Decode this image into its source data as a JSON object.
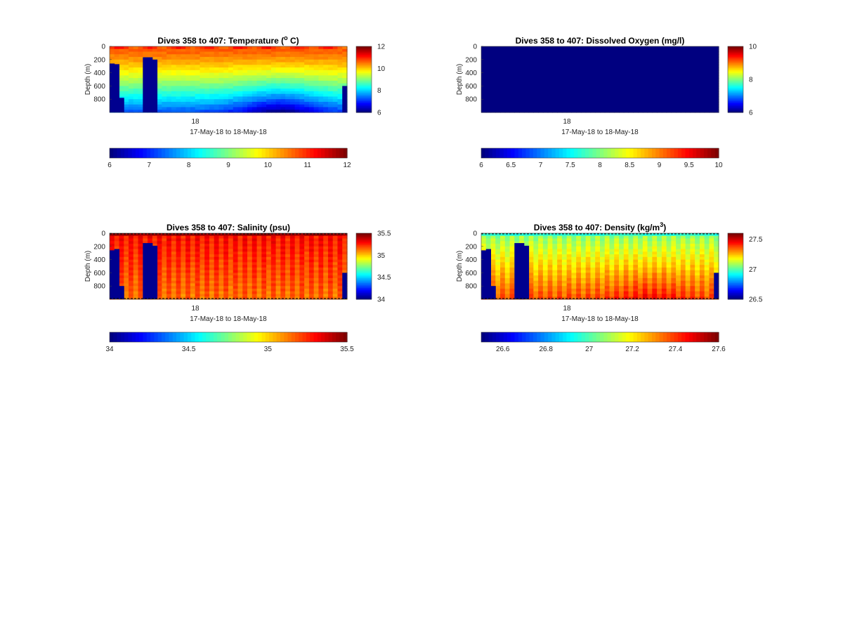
{
  "chart_data": [
    {
      "type": "heatmap",
      "title": "Dives 358 to 407: Temperature (",
      "title_sup": "o",
      "title_post": " C)",
      "ylabel": "Depth (m)",
      "xlabel": "17-May-18 to 18-May-18",
      "x_tick_labels": [
        "18"
      ],
      "y_tick_labels": [
        "0",
        "200",
        "400",
        "600",
        "800"
      ],
      "y_ticks": [
        0,
        200,
        400,
        600,
        800
      ],
      "ylim": [
        0,
        1000
      ],
      "y_reversed": true,
      "colormap": "jet",
      "clim": [
        6,
        12
      ],
      "side_colorbar_ticks": [
        6,
        8,
        10,
        12
      ],
      "bottom_colorbar_ticks": [
        6,
        7,
        8,
        9,
        10,
        11,
        12
      ],
      "dives": 50,
      "field": "temperature",
      "missing": [
        {
          "dive_from": 0,
          "dive_to": 1,
          "depth_from": 260
        },
        {
          "dive_from": 1,
          "dive_to": 2,
          "depth_from": 270
        },
        {
          "dive_from": 2,
          "dive_to": 3,
          "depth_from": 780
        },
        {
          "dive_from": 7,
          "dive_to": 8,
          "depth_from": 165
        },
        {
          "dive_from": 8,
          "dive_to": 9,
          "depth_from": 165
        },
        {
          "dive_from": 9,
          "dive_to": 10,
          "depth_from": 200
        },
        {
          "dive_from": 49,
          "dive_to": 50,
          "depth_from": 600
        }
      ]
    },
    {
      "type": "heatmap",
      "title": "Dives 358 to 407: Dissolved Oxygen (mg/l)",
      "ylabel": "Depth (m)",
      "xlabel": "17-May-18 to 18-May-18",
      "x_tick_labels": [
        "18"
      ],
      "y_tick_labels": [
        "0",
        "200",
        "400",
        "600",
        "800"
      ],
      "y_ticks": [
        0,
        200,
        400,
        600,
        800
      ],
      "ylim": [
        0,
        1000
      ],
      "y_reversed": true,
      "colormap": "jet",
      "clim": [
        6,
        10
      ],
      "side_colorbar_ticks": [
        6,
        8,
        10
      ],
      "bottom_colorbar_ticks": [
        "6",
        "6.5",
        "7",
        "7.5",
        "8",
        "8.5",
        "9",
        "9.5",
        "10"
      ],
      "dives": 50,
      "field": "oxygen",
      "missing": []
    },
    {
      "type": "heatmap",
      "title": "Dives 358 to 407: Salinity (psu)",
      "ylabel": "Depth (m)",
      "xlabel": "17-May-18 to 18-May-18",
      "x_tick_labels": [
        "18"
      ],
      "y_tick_labels": [
        "0",
        "200",
        "400",
        "600",
        "800"
      ],
      "y_ticks": [
        0,
        200,
        400,
        600,
        800
      ],
      "ylim": [
        0,
        1000
      ],
      "y_reversed": true,
      "colormap": "jet",
      "clim": [
        34,
        35.5
      ],
      "side_colorbar_ticks": [
        "34",
        "34.5",
        "35",
        "35.5"
      ],
      "bottom_colorbar_ticks": [
        "34",
        "34.5",
        "35",
        "35.5"
      ],
      "dives": 50,
      "field": "salinity",
      "missing": [
        {
          "dive_from": 0,
          "dive_to": 1,
          "depth_from": 260
        },
        {
          "dive_from": 1,
          "dive_to": 2,
          "depth_from": 240
        },
        {
          "dive_from": 2,
          "dive_to": 3,
          "depth_from": 800
        },
        {
          "dive_from": 7,
          "dive_to": 8,
          "depth_from": 150
        },
        {
          "dive_from": 8,
          "dive_to": 9,
          "depth_from": 150
        },
        {
          "dive_from": 9,
          "dive_to": 10,
          "depth_from": 190
        },
        {
          "dive_from": 49,
          "dive_to": 50,
          "depth_from": 600
        }
      ]
    },
    {
      "type": "heatmap",
      "title": "Dives 358 to 407: Density (kg/m",
      "title_sup": "3",
      "title_post": ")",
      "ylabel": "Depth (m)",
      "xlabel": "17-May-18 to 18-May-18",
      "x_tick_labels": [
        "18"
      ],
      "y_tick_labels": [
        "0",
        "200",
        "400",
        "600",
        "800"
      ],
      "y_ticks": [
        0,
        200,
        400,
        600,
        800
      ],
      "ylim": [
        0,
        1000
      ],
      "y_reversed": true,
      "colormap": "jet",
      "clim": [
        26.5,
        27.6
      ],
      "side_colorbar_ticks": [
        "26.5",
        "27",
        "27.5"
      ],
      "bottom_colorbar_ticks": [
        "26.6",
        "26.8",
        "27",
        "27.2",
        "27.4",
        "27.6"
      ],
      "dives": 50,
      "field": "density",
      "missing": [
        {
          "dive_from": 0,
          "dive_to": 1,
          "depth_from": 260
        },
        {
          "dive_from": 1,
          "dive_to": 2,
          "depth_from": 240
        },
        {
          "dive_from": 2,
          "dive_to": 3,
          "depth_from": 800
        },
        {
          "dive_from": 7,
          "dive_to": 8,
          "depth_from": 150
        },
        {
          "dive_from": 8,
          "dive_to": 9,
          "depth_from": 150
        },
        {
          "dive_from": 9,
          "dive_to": 10,
          "depth_from": 190
        },
        {
          "dive_from": 49,
          "dive_to": 50,
          "depth_from": 600
        }
      ]
    }
  ]
}
